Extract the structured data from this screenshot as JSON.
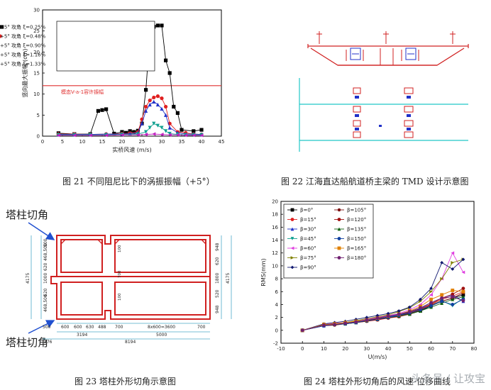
{
  "figures": {
    "fig21": {
      "caption": "图 21  不同阻尼比下的涡振振幅（+5°）",
      "annotation": "模态V-a-1容许振幅",
      "threshold_color": "#e03030"
    },
    "fig22": {
      "caption": "图 22  江海直达船航道桥主梁的 TMD 设计示意图"
    },
    "fig23": {
      "caption": "图 23  塔柱外形切角示意图",
      "callout_top": "塔柱切角",
      "callout_bottom": "塔柱切角",
      "dims_left": [
        "500",
        "468,500",
        "620",
        "1000",
        "620",
        "468,500"
      ],
      "dims_left_total": "4175",
      "dims_bottom": [
        "500",
        "600",
        "600",
        "630",
        "488",
        "700",
        "8x600=3600",
        "700"
      ],
      "dims_bottom_mid": [
        "3194",
        "5000"
      ],
      "dims_bottom_outer": [
        "376",
        "8194"
      ],
      "dims_right": [
        "948",
        "620",
        "1800",
        "520",
        "948"
      ],
      "dims_right_total": "4175",
      "inner_dims": [
        "100",
        "700",
        "100"
      ]
    },
    "fig24": {
      "caption": "图 24  塔柱外形切角后的风速-位移曲线"
    }
  },
  "chart_data": [
    {
      "type": "scatter",
      "id": "fig21",
      "xlabel": "实桥风速 (m/s)",
      "ylabel": "竖向最大振幅 (cm)",
      "xlim": [
        0,
        45
      ],
      "ylim": [
        0,
        30
      ],
      "xticks": [
        0,
        5,
        10,
        15,
        20,
        25,
        30,
        35,
        40,
        45
      ],
      "yticks": [
        0,
        5,
        10,
        15,
        20,
        25,
        30
      ],
      "threshold": 12,
      "legend_position": "top-left",
      "series": [
        {
          "name": "+5° 攻角  ξ=0.25%",
          "color": "#000000",
          "marker": "square",
          "x": [
            4,
            8,
            12,
            14,
            15,
            16,
            18,
            20,
            21,
            22,
            23,
            24,
            25,
            26,
            27,
            28,
            29,
            30,
            31,
            32,
            33,
            34,
            35,
            38,
            40
          ],
          "y": [
            0.7,
            0.5,
            0.5,
            6,
            6.2,
            6.4,
            0.6,
            1,
            0.8,
            1.2,
            1,
            1.3,
            3,
            11,
            24,
            26,
            26.3,
            26.3,
            18,
            15,
            7,
            5.5,
            1.5,
            1.2,
            1.5
          ]
        },
        {
          "name": "+5° 攻角  ξ=0.48%",
          "color": "#e02020",
          "marker": "circle",
          "x": [
            4,
            8,
            12,
            16,
            20,
            22,
            24,
            25,
            26,
            27,
            28,
            29,
            30,
            31,
            32,
            34,
            36,
            38,
            40
          ],
          "y": [
            0.5,
            0.5,
            0.4,
            0.5,
            0.6,
            0.7,
            1,
            4,
            7,
            8.5,
            9.2,
            9.5,
            9,
            7,
            3,
            1,
            0.8,
            0.5,
            0.4
          ]
        },
        {
          "name": "+5° 攻角  ξ=0.90%",
          "color": "#2030c8",
          "marker": "triangle",
          "x": [
            4,
            8,
            12,
            16,
            20,
            22,
            24,
            25,
            26,
            27,
            28,
            29,
            30,
            31,
            32,
            34,
            36,
            38,
            40
          ],
          "y": [
            0.4,
            0.4,
            0.4,
            0.5,
            0.5,
            0.6,
            0.8,
            3,
            6,
            7.5,
            8.2,
            7.5,
            6.5,
            5,
            2,
            0.8,
            0.5,
            0.5,
            0.4
          ]
        },
        {
          "name": "+5° 攻角  ξ=1.16%",
          "color": "#10a090",
          "marker": "triangle-down",
          "x": [
            4,
            8,
            12,
            16,
            20,
            24,
            26,
            27,
            28,
            29,
            30,
            31,
            32,
            34,
            36,
            38,
            40
          ],
          "y": [
            0.3,
            0.3,
            0.3,
            0.3,
            0.4,
            0.5,
            1,
            2,
            3,
            2.5,
            2,
            1.2,
            0.6,
            0.4,
            0.3,
            0.3,
            0.3
          ]
        },
        {
          "name": "+5° 攻角  ξ=1.33%",
          "color": "#c020c0",
          "marker": "triangle-left",
          "x": [
            4,
            8,
            12,
            16,
            20,
            24,
            26,
            28,
            30,
            32,
            34,
            36,
            38,
            40
          ],
          "y": [
            0.2,
            0.2,
            0.2,
            0.2,
            0.3,
            0.3,
            0.4,
            0.5,
            0.4,
            0.3,
            0.3,
            0.2,
            0.2,
            0.2
          ]
        }
      ]
    },
    {
      "type": "line",
      "id": "fig24",
      "xlabel": "U(m/s)",
      "ylabel": "RMS(mm)",
      "xlim": [
        -10,
        80
      ],
      "ylim": [
        -2,
        20
      ],
      "xticks": [
        -10,
        0,
        10,
        20,
        30,
        40,
        50,
        60,
        70,
        80
      ],
      "yticks": [
        -2,
        0,
        2,
        4,
        6,
        8,
        10,
        12,
        14,
        16,
        18,
        20
      ],
      "legend_position": "top-left",
      "x": [
        0,
        10,
        15,
        20,
        25,
        30,
        35,
        40,
        45,
        50,
        55,
        60,
        65,
        70,
        75
      ],
      "series": [
        {
          "name": "β=0°",
          "color": "#000000",
          "marker": "square",
          "values": [
            0,
            0.9,
            1,
            1.1,
            1.3,
            1.5,
            1.7,
            2,
            2.2,
            2.6,
            3,
            3.8,
            4.5,
            5,
            5.5
          ]
        },
        {
          "name": "β=15°",
          "color": "#e02020",
          "marker": "circle",
          "values": [
            0,
            0.8,
            0.9,
            1,
            1.2,
            1.4,
            1.6,
            1.9,
            2.1,
            2.5,
            3.2,
            4,
            4.8,
            5.3,
            6
          ]
        },
        {
          "name": "β=30°",
          "color": "#2030c8",
          "marker": "triangle",
          "values": [
            0,
            0.7,
            0.9,
            1.1,
            1.2,
            1.5,
            1.8,
            2.1,
            2.4,
            2.8,
            3.4,
            4.3,
            5,
            5.5,
            4.5
          ]
        },
        {
          "name": "β=45°",
          "color": "#10a090",
          "marker": "triangle-down",
          "values": [
            0,
            0.8,
            1,
            1.1,
            1.3,
            1.6,
            1.8,
            2,
            2.3,
            2.7,
            3.1,
            3.9,
            4.6,
            3.8,
            5
          ]
        },
        {
          "name": "β=60°",
          "color": "#e040e0",
          "marker": "triangle-left",
          "values": [
            0,
            0.9,
            1.1,
            1.2,
            1.4,
            1.7,
            2,
            2.3,
            2.6,
            3.2,
            4,
            5.5,
            8,
            12,
            9
          ]
        },
        {
          "name": "β=75°",
          "color": "#808000",
          "marker": "triangle-right",
          "values": [
            0,
            0.8,
            1,
            1.2,
            1.5,
            1.8,
            2.1,
            2.4,
            2.9,
            3.5,
            4.5,
            6,
            8,
            10.5,
            11
          ]
        },
        {
          "name": "β=90°",
          "color": "#101870",
          "marker": "diamond",
          "values": [
            0,
            1,
            1.2,
            1.4,
            1.7,
            2,
            2.3,
            2.6,
            3,
            3.6,
            4.8,
            6.5,
            10.5,
            9.5,
            11
          ]
        },
        {
          "name": "β=105°",
          "color": "#7a1010",
          "marker": "hexagon",
          "values": [
            0,
            0.7,
            0.8,
            1,
            1.2,
            1.4,
            1.7,
            1.9,
            2.2,
            2.6,
            3.1,
            3.9,
            4.5,
            5,
            5.8
          ]
        },
        {
          "name": "β=120°",
          "color": "#a01010",
          "marker": "circle",
          "values": [
            0,
            0.8,
            0.9,
            1.1,
            1.3,
            1.5,
            1.8,
            2,
            2.3,
            2.8,
            3.3,
            4.1,
            5,
            5.6,
            6.5
          ]
        },
        {
          "name": "β=135°",
          "color": "#106010",
          "marker": "triangle",
          "values": [
            0,
            0.8,
            0.9,
            1,
            1.2,
            1.5,
            1.7,
            2,
            2.2,
            2.5,
            3,
            3.6,
            4.2,
            4.8,
            5.2
          ]
        },
        {
          "name": "β=150°",
          "color": "#1040a0",
          "marker": "circle",
          "values": [
            0,
            0.7,
            0.9,
            1,
            1.2,
            1.5,
            1.7,
            2,
            2.3,
            2.7,
            3.2,
            3.8,
            4.5,
            4,
            4.8
          ]
        },
        {
          "name": "β=165°",
          "color": "#e08000",
          "marker": "square",
          "values": [
            0,
            0.9,
            1,
            1.2,
            1.4,
            1.6,
            1.9,
            2.2,
            2.5,
            3,
            3.7,
            4.8,
            5.5,
            6.2,
            6
          ]
        },
        {
          "name": "β=180°",
          "color": "#702070",
          "marker": "circle",
          "values": [
            0,
            0.8,
            0.9,
            1.1,
            1.3,
            1.6,
            1.9,
            2.2,
            2.5,
            2.9,
            3.5,
            4.3,
            5,
            5.2,
            4.6
          ]
        }
      ]
    }
  ],
  "watermark": "头条号 / 让攻宝"
}
